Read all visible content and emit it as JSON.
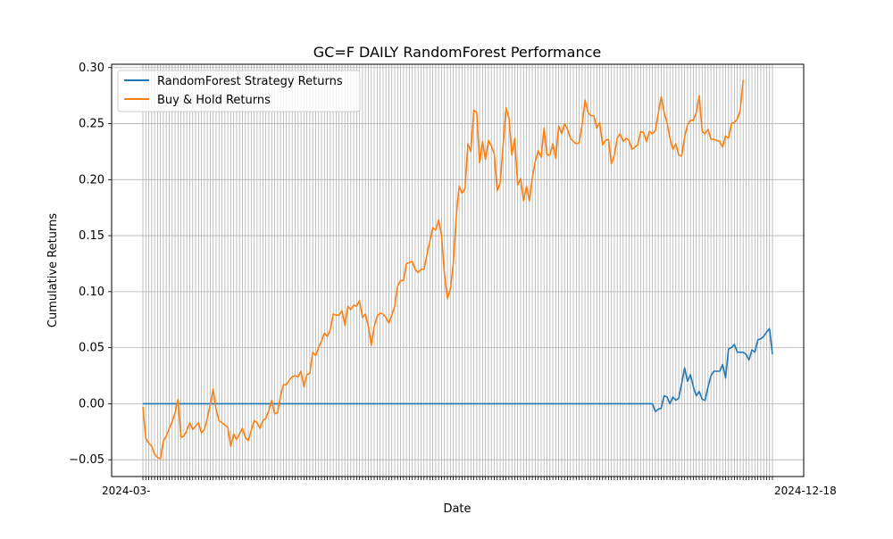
{
  "chart_data": {
    "type": "line",
    "title": "GC=F DAILY RandomForest Performance",
    "xlabel": "Date",
    "ylabel": "Cumulative Returns",
    "ylim": [
      -0.065,
      0.303
    ],
    "y_ticks": [
      -0.05,
      0.0,
      0.05,
      0.1,
      0.15,
      0.2,
      0.25,
      0.3
    ],
    "y_tick_labels": [
      "−0.05",
      "0.00",
      "0.05",
      "0.10",
      "0.15",
      "0.20",
      "0.25",
      "0.30"
    ],
    "x_tick_label_left": "2024-03-",
    "x_tick_label_right": "2024-12-18",
    "grid": true,
    "legend_position": "upper-left",
    "series": [
      {
        "name": "RandomForest Strategy Returns",
        "color": "#1f77b4",
        "values": [
          0.0,
          0.0,
          0.0,
          0.0,
          0.0,
          0.0,
          0.0,
          0.0,
          0.0,
          0.0,
          0.0,
          0.0,
          0.0,
          0.0,
          0.0,
          0.0,
          0.0,
          0.0,
          0.0,
          0.0,
          0.0,
          0.0,
          0.0,
          0.0,
          0.0,
          0.0,
          0.0,
          0.0,
          0.0,
          0.0,
          0.0,
          0.0,
          0.0,
          0.0,
          0.0,
          0.0,
          0.0,
          0.0,
          0.0,
          0.0,
          0.0,
          0.0,
          0.0,
          0.0,
          0.0,
          0.0,
          0.0,
          0.0,
          0.0,
          0.0,
          0.0,
          0.0,
          0.0,
          0.0,
          0.0,
          0.0,
          0.0,
          0.0,
          0.0,
          0.0,
          0.0,
          0.0,
          0.0,
          0.0,
          0.0,
          0.0,
          0.0,
          0.0,
          0.0,
          0.0,
          0.0,
          0.0,
          0.0,
          0.0,
          0.0,
          0.0,
          0.0,
          0.0,
          0.0,
          0.0,
          0.0,
          0.0,
          0.0,
          0.0,
          0.0,
          0.0,
          0.0,
          0.0,
          0.0,
          0.0,
          0.0,
          0.0,
          0.0,
          0.0,
          0.0,
          0.0,
          0.0,
          0.0,
          0.0,
          0.0,
          0.0,
          0.0,
          0.0,
          0.0,
          0.0,
          0.0,
          0.0,
          0.0,
          0.0,
          0.0,
          0.0,
          0.0,
          0.0,
          0.0,
          0.0,
          0.0,
          0.0,
          0.0,
          0.0,
          0.0,
          0.0,
          0.0,
          0.0,
          0.0,
          0.0,
          0.0,
          0.0,
          0.0,
          0.0,
          0.0,
          0.0,
          0.0,
          0.0,
          0.0,
          0.0,
          0.0,
          0.0,
          0.0,
          0.0,
          0.0,
          0.0,
          0.0,
          0.0,
          0.0,
          0.0,
          0.0,
          0.0,
          0.0,
          0.0,
          0.0,
          0.0,
          0.0,
          0.0,
          0.0,
          0.0,
          0.0,
          0.0,
          0.0,
          0.0,
          0.0,
          0.0,
          0.0,
          0.0,
          0.0,
          0.0,
          0.0,
          0.0,
          0.0,
          0.0,
          0.0,
          0.0,
          0.0,
          0.0,
          0.0,
          0.0,
          -0.007,
          -0.005,
          -0.004,
          0.007,
          0.006,
          0.0,
          0.006,
          0.003,
          0.005,
          0.018,
          0.032,
          0.02,
          0.026,
          0.015,
          0.007,
          0.011,
          0.004,
          0.003,
          0.015,
          0.025,
          0.029,
          0.029,
          0.029,
          0.035,
          0.023,
          0.049,
          0.05,
          0.053,
          0.046,
          0.046,
          0.046,
          0.044,
          0.039,
          0.048,
          0.046,
          0.057,
          0.058,
          0.06,
          0.064,
          0.067,
          0.044
        ]
      },
      {
        "name": "Buy & Hold Returns",
        "color": "#ff7f0e",
        "values": [
          -0.003,
          -0.031,
          -0.035,
          -0.038,
          -0.045,
          -0.048,
          -0.049,
          -0.033,
          -0.029,
          -0.022,
          -0.016,
          -0.008,
          0.004,
          -0.03,
          -0.029,
          -0.024,
          -0.017,
          -0.023,
          -0.02,
          -0.017,
          -0.026,
          -0.023,
          -0.013,
          -0.001,
          0.013,
          -0.005,
          -0.015,
          -0.017,
          -0.019,
          -0.021,
          -0.038,
          -0.027,
          -0.032,
          -0.027,
          -0.022,
          -0.03,
          -0.033,
          -0.024,
          -0.015,
          -0.017,
          -0.022,
          -0.015,
          -0.013,
          -0.006,
          0.003,
          -0.009,
          -0.008,
          0.007,
          0.017,
          0.017,
          0.021,
          0.024,
          0.025,
          0.024,
          0.029,
          0.015,
          0.026,
          0.027,
          0.046,
          0.043,
          0.05,
          0.056,
          0.063,
          0.06,
          0.066,
          0.08,
          0.079,
          0.079,
          0.083,
          0.07,
          0.087,
          0.084,
          0.088,
          0.087,
          0.092,
          0.077,
          0.08,
          0.069,
          0.052,
          0.069,
          0.078,
          0.081,
          0.08,
          0.077,
          0.072,
          0.079,
          0.087,
          0.105,
          0.11,
          0.11,
          0.125,
          0.126,
          0.127,
          0.12,
          0.117,
          0.12,
          0.12,
          0.133,
          0.145,
          0.157,
          0.155,
          0.164,
          0.15,
          0.115,
          0.094,
          0.102,
          0.125,
          0.167,
          0.194,
          0.188,
          0.192,
          0.232,
          0.225,
          0.262,
          0.26,
          0.215,
          0.234,
          0.218,
          0.235,
          0.23,
          0.223,
          0.19,
          0.197,
          0.23,
          0.264,
          0.255,
          0.222,
          0.237,
          0.195,
          0.201,
          0.181,
          0.194,
          0.181,
          0.202,
          0.216,
          0.226,
          0.22,
          0.246,
          0.222,
          0.222,
          0.232,
          0.219,
          0.248,
          0.241,
          0.25,
          0.245,
          0.237,
          0.234,
          0.232,
          0.233,
          0.249,
          0.271,
          0.26,
          0.257,
          0.257,
          0.246,
          0.251,
          0.231,
          0.235,
          0.236,
          0.214,
          0.222,
          0.237,
          0.241,
          0.234,
          0.237,
          0.235,
          0.227,
          0.229,
          0.231,
          0.243,
          0.242,
          0.234,
          0.243,
          0.241,
          0.244,
          0.259,
          0.274,
          0.26,
          0.251,
          0.237,
          0.227,
          0.232,
          0.222,
          0.221,
          0.238,
          0.249,
          0.253,
          0.253,
          0.26,
          0.275,
          0.243,
          0.241,
          0.245,
          0.236,
          0.236,
          0.235,
          0.234,
          0.229,
          0.239,
          0.237,
          0.25,
          0.251,
          0.254,
          0.262,
          0.289
        ]
      }
    ]
  }
}
